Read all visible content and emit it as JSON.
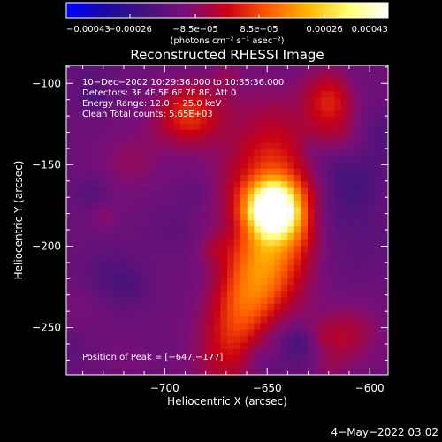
{
  "chart_data": {
    "type": "heatmap",
    "title": "Reconstructed RHESSI Image",
    "xlabel": "Heliocentric X (arcsec)",
    "ylabel": "Heliocentric Y (arcsec)",
    "xlim": [
      -748,
      -591
    ],
    "ylim": [
      -279,
      -89
    ],
    "x_ticks": [
      -700,
      -650,
      -600
    ],
    "x_tick_labels": [
      "−700",
      "−650",
      "−600"
    ],
    "y_ticks": [
      -100,
      -150,
      -200,
      -250
    ],
    "y_tick_labels": [
      "−100",
      "−150",
      "−200",
      "−250"
    ],
    "colorbar": {
      "range": [
        -0.00043,
        0.00043
      ],
      "tick_values": [
        -0.00043,
        -0.00026,
        -8.5e-05,
        8.5e-05,
        0.00026,
        0.00043
      ],
      "tick_labels": [
        "−0.00043",
        "−0.00026",
        "−8.5e−05",
        "8.5e−05",
        "0.00026",
        "0.00043"
      ],
      "units": "(photons cm⁻² s⁻¹ asec⁻²)",
      "colormap": [
        "#0000ff",
        "#1a0aa0",
        "#46147a",
        "#7a0f78",
        "#c80014",
        "#ff5a00",
        "#ffb400",
        "#ffff78",
        "#ffffff"
      ]
    },
    "annotations": [
      "10−Dec−2002 10:29:36.000 to 10:35:36.000",
      "Detectors: 3F 4F 5F 6F 7F 8F, Att 0",
      "Energy Range: 12.0 − 25.0 keV",
      "Clean     Total counts: 5.65E+03"
    ],
    "peak_label": "Position of Peak = [−647,−177]",
    "peak": [
      -647,
      -177
    ]
  },
  "footer": "4−May−2022 03:02"
}
